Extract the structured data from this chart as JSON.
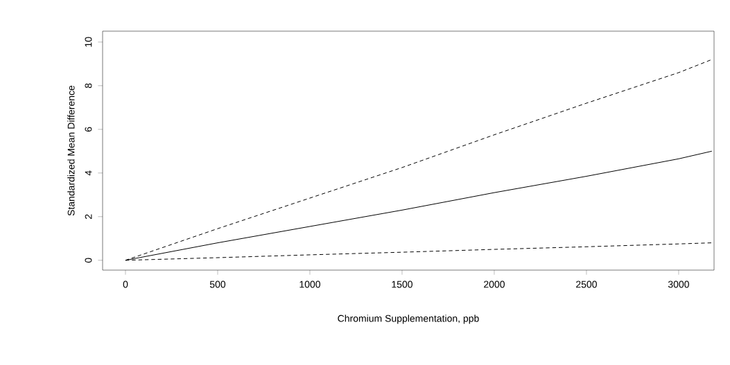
{
  "chart_data": {
    "type": "line",
    "xlabel": "Chromium Supplementation, ppb",
    "ylabel": "Standardized Mean Difference",
    "xlim": [
      -124,
      3192
    ],
    "ylim": [
      -0.45,
      10.5
    ],
    "xticks": [
      0,
      500,
      1000,
      1500,
      2000,
      2500,
      3000
    ],
    "yticks": [
      0,
      2,
      4,
      6,
      8,
      10
    ],
    "grid": false,
    "marker": "none",
    "series": [
      {
        "color": "#000000",
        "line_style": "dashed",
        "x": [
          0,
          500,
          1000,
          1500,
          2000,
          2500,
          3000,
          3180
        ],
        "values": [
          0,
          1.45,
          2.85,
          4.25,
          5.75,
          7.2,
          8.6,
          9.2
        ]
      },
      {
        "color": "#000000",
        "line_style": "solid",
        "x": [
          0,
          500,
          1000,
          1500,
          2000,
          2500,
          3000,
          3180
        ],
        "values": [
          0,
          0.8,
          1.55,
          2.3,
          3.1,
          3.85,
          4.65,
          5.0
        ]
      },
      {
        "color": "#000000",
        "line_style": "dashed",
        "x": [
          0,
          500,
          1000,
          1500,
          2000,
          2500,
          3000,
          3180
        ],
        "values": [
          0,
          0.12,
          0.25,
          0.37,
          0.5,
          0.62,
          0.75,
          0.8
        ]
      }
    ]
  }
}
